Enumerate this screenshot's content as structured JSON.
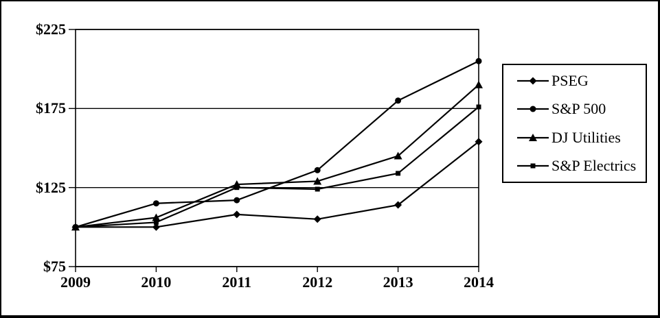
{
  "figure": {
    "background_color": "#ffffff",
    "border_color": "#000000",
    "line_color": "#000000"
  },
  "chart_data": {
    "type": "line",
    "title": "",
    "xlabel": "",
    "ylabel": "",
    "x": [
      2009,
      2010,
      2011,
      2012,
      2013,
      2014
    ],
    "x_tick_labels": [
      "2009",
      "2010",
      "2011",
      "2012",
      "2013",
      "2014"
    ],
    "y_ticks": [
      {
        "value": 75,
        "label": "$75"
      },
      {
        "value": 125,
        "label": "$125"
      },
      {
        "value": 175,
        "label": "$175"
      },
      {
        "value": 225,
        "label": "$225"
      }
    ],
    "ylim": [
      75,
      225
    ],
    "grid": "horizontal",
    "legend_position": "right",
    "series": [
      {
        "name": "PSEG",
        "marker": "diamond",
        "color": "#000000",
        "values": [
          100,
          100,
          108,
          105,
          114,
          154
        ]
      },
      {
        "name": "S&P 500",
        "marker": "circle",
        "color": "#000000",
        "values": [
          100,
          115,
          117,
          136,
          180,
          205
        ]
      },
      {
        "name": "DJ Utilities",
        "marker": "triangle",
        "color": "#000000",
        "values": [
          100,
          106,
          127,
          129,
          145,
          190
        ]
      },
      {
        "name": "S&P Electrics",
        "marker": "square",
        "color": "#000000",
        "values": [
          100,
          103,
          125,
          124,
          134,
          176
        ]
      }
    ]
  }
}
